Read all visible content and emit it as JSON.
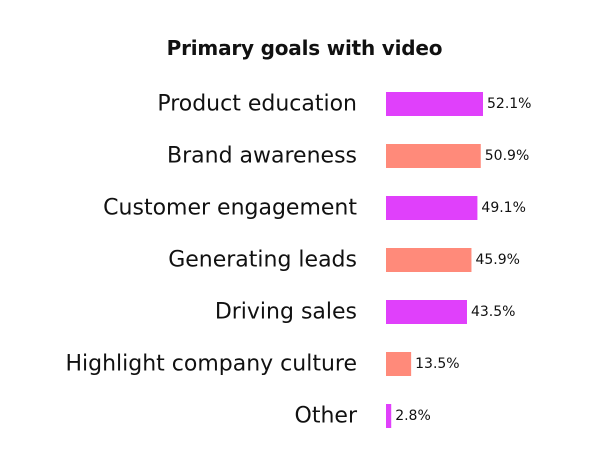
{
  "chart_data": {
    "type": "bar",
    "orientation": "horizontal",
    "title": "Primary goals with video",
    "xlabel": "",
    "ylabel": "",
    "xlim": [
      0,
      52.1
    ],
    "grid": false,
    "categories": [
      "Product education",
      "Brand awareness",
      "Customer engagement",
      "Generating leads",
      "Driving sales",
      "Highlight company culture",
      "Other"
    ],
    "values": [
      52.1,
      50.9,
      49.1,
      45.9,
      43.5,
      13.5,
      2.8
    ],
    "value_labels": [
      "52.1%",
      "50.9%",
      "49.1%",
      "45.9%",
      "43.5%",
      "13.5%",
      "2.8%"
    ],
    "bar_colors": [
      "#e040fb",
      "#ff8a7a",
      "#e040fb",
      "#ff8a7a",
      "#e040fb",
      "#ff8a7a",
      "#e040fb"
    ]
  }
}
